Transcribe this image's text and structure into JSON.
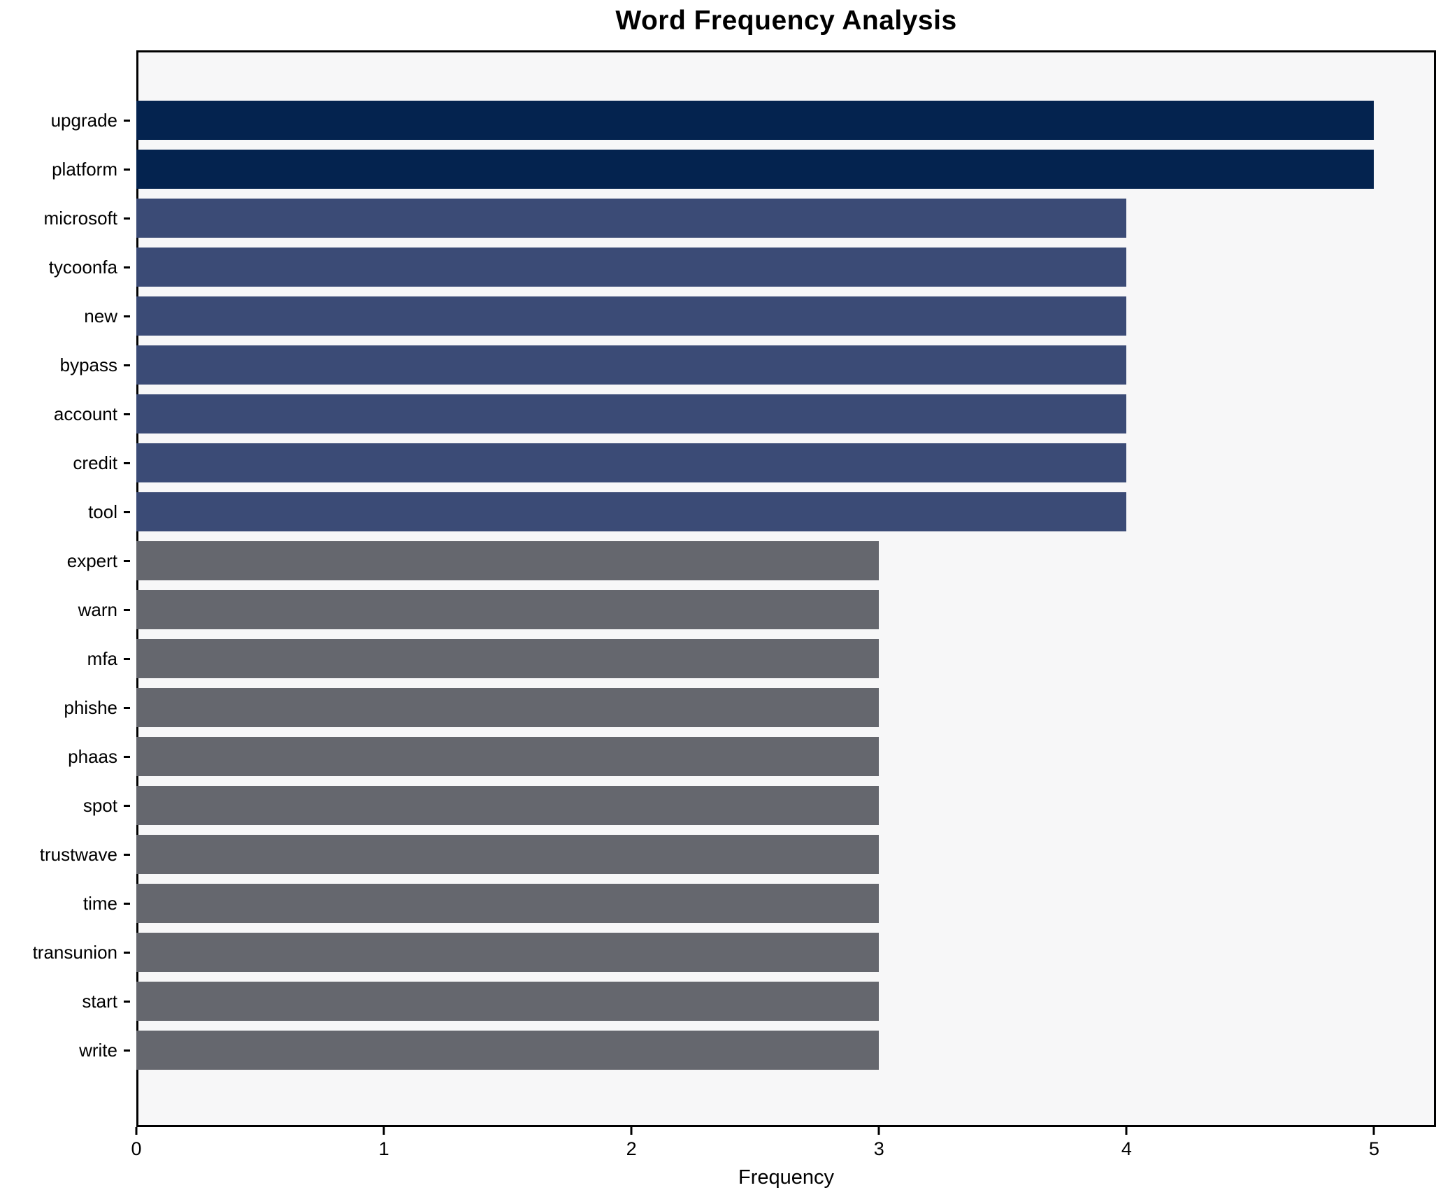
{
  "chart_data": {
    "type": "bar",
    "orientation": "horizontal",
    "title": "Word Frequency Analysis",
    "xlabel": "Frequency",
    "ylabel": "",
    "categories": [
      "upgrade",
      "platform",
      "microsoft",
      "tycoonfa",
      "new",
      "bypass",
      "account",
      "credit",
      "tool",
      "expert",
      "warn",
      "mfa",
      "phishe",
      "phaas",
      "spot",
      "trustwave",
      "time",
      "transunion",
      "start",
      "write"
    ],
    "values": [
      5,
      5,
      4,
      4,
      4,
      4,
      4,
      4,
      4,
      3,
      3,
      3,
      3,
      3,
      3,
      3,
      3,
      3,
      3,
      3
    ],
    "xlim": [
      0,
      5.25
    ],
    "xticks": [
      0,
      1,
      2,
      3,
      4,
      5
    ],
    "grid": false,
    "legend_position": "none",
    "value_colors": {
      "5": "#04234f",
      "4": "#3b4b76",
      "3": "#65676e"
    }
  },
  "colors": {
    "figure_background": "#ffffff",
    "plot_background": "#f7f7f8",
    "spine": "#000000",
    "text": "#000000"
  }
}
